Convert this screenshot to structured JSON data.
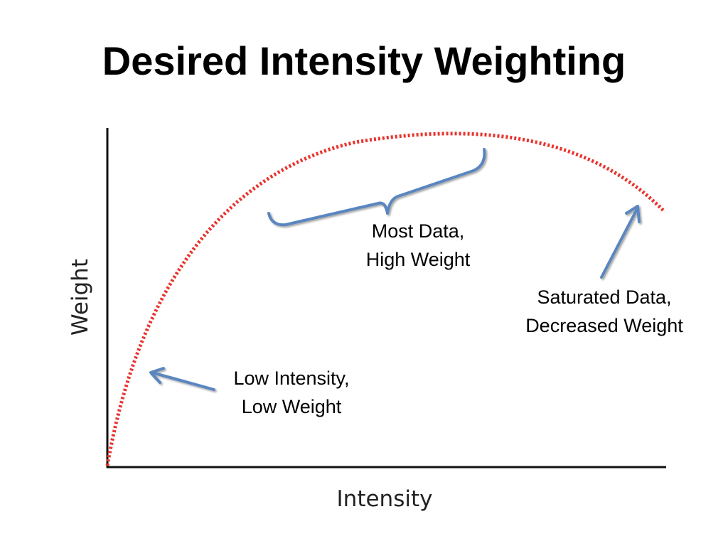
{
  "title": "Desired Intensity Weighting",
  "axes": {
    "x_label": "Intensity",
    "y_label": "Weight"
  },
  "annotations": {
    "high": {
      "line1": "Most Data,",
      "line2": "High Weight"
    },
    "saturated": {
      "line1": "Saturated Data,",
      "line2": "Decreased Weight"
    },
    "low": {
      "line1": "Low Intensity,",
      "line2": "Low Weight"
    }
  },
  "colors": {
    "curve": "#e8332d",
    "arrow": "#5a86c0",
    "axis": "#111111"
  }
}
